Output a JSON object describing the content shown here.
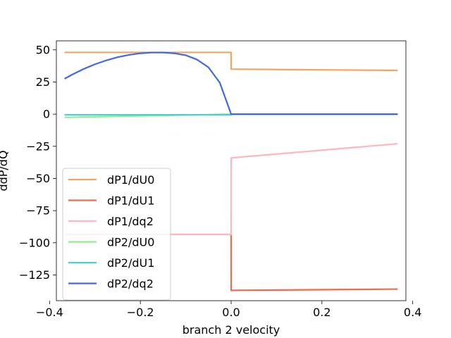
{
  "chart_data": {
    "type": "line",
    "xlabel": "branch 2 velocity",
    "ylabel": "ddP/dQ",
    "xlim": [
      -0.385,
      0.385
    ],
    "ylim": [
      -145,
      57
    ],
    "xticks": [
      -0.4,
      -0.2,
      0.0,
      0.2,
      0.4
    ],
    "xtick_labels": [
      "−0.4",
      "−0.2",
      "0.0",
      "0.2",
      "0.4"
    ],
    "yticks": [
      50,
      25,
      0,
      -25,
      -50,
      -75,
      -100,
      -125
    ],
    "ytick_labels": [
      "50",
      "25",
      "0",
      "−25",
      "−50",
      "−75",
      "−100",
      "−125"
    ],
    "grid": false,
    "legend_position": "lower-left",
    "series": [
      {
        "name": "dP1/dU0",
        "color": "#f4a460",
        "x": [
          -0.367,
          -0.0001,
          0.0001,
          0.367
        ],
        "y": [
          48,
          48,
          35,
          34
        ]
      },
      {
        "name": "dP1/dU1",
        "color": "#f06a4c",
        "x": [
          -0.367,
          -0.0001,
          0.0001,
          0.367
        ],
        "y": [
          -93.5,
          -93.5,
          -137,
          -136
        ]
      },
      {
        "name": "dP1/dq2",
        "color": "#ffb6c1",
        "x": [
          -0.367,
          -0.0001,
          0.0001,
          0.367
        ],
        "y": [
          -93.5,
          -93.5,
          -34,
          -23
        ]
      },
      {
        "name": "dP2/dU0",
        "color": "#90ee90",
        "x": [
          -0.367,
          -0.0001,
          0.0001,
          0.367
        ],
        "y": [
          -2.5,
          0,
          0,
          0
        ]
      },
      {
        "name": "dP2/dU1",
        "color": "#48d1cc",
        "x": [
          -0.367,
          -0.0001,
          0.0001,
          0.367
        ],
        "y": [
          -0.5,
          -0.5,
          0,
          0
        ]
      },
      {
        "name": "dP2/dq2",
        "color": "#4169e1",
        "x": [
          -0.367,
          -0.35,
          -0.325,
          -0.3,
          -0.275,
          -0.25,
          -0.225,
          -0.2,
          -0.175,
          -0.15,
          -0.125,
          -0.1,
          -0.075,
          -0.05,
          -0.025,
          0.0,
          0.0001,
          0.367
        ],
        "y": [
          27.5,
          30.8,
          35.1,
          38.8,
          41.8,
          44.3,
          46.1,
          47.3,
          47.9,
          47.9,
          47.3,
          45.8,
          42.4,
          36.4,
          24.5,
          0,
          0,
          0
        ]
      }
    ]
  }
}
